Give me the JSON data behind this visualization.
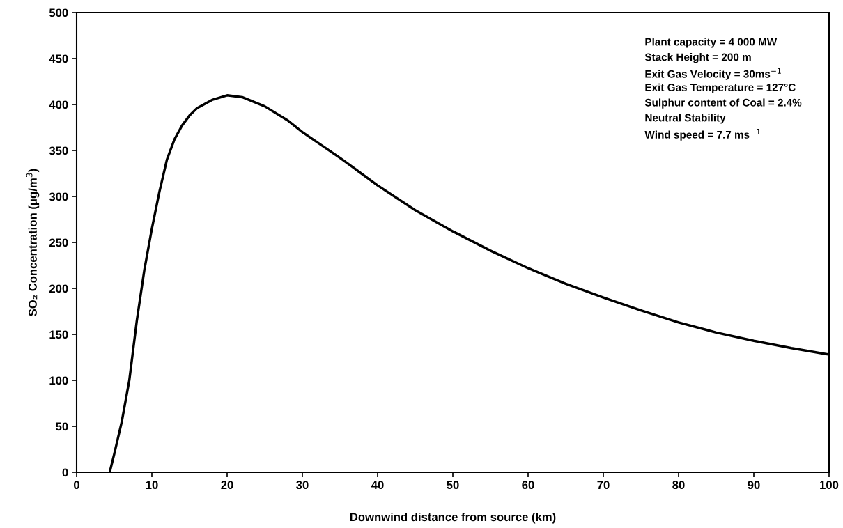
{
  "chart_data": {
    "type": "line",
    "xlabel": "Downwind distance from source (km)",
    "ylabel": "SO₂ Concentration (μg/m$^{3}$)",
    "x": [
      4.4,
      5,
      6,
      7,
      8,
      9,
      10,
      11,
      12,
      13,
      14,
      15,
      16,
      18,
      20,
      22,
      25,
      28,
      30,
      35,
      40,
      45,
      50,
      55,
      60,
      65,
      70,
      75,
      80,
      85,
      90,
      95,
      100
    ],
    "series": [
      {
        "color": "#000000",
        "values": [
          0,
          20,
          55,
          100,
          165,
          220,
          265,
          305,
          340,
          362,
          377,
          388,
          396,
          405,
          410,
          408,
          398,
          383,
          370,
          342,
          312,
          285,
          262,
          241,
          222,
          205,
          190,
          176,
          163,
          152,
          143,
          135,
          128
        ]
      }
    ],
    "xlim": [
      0,
      100
    ],
    "xticks": [
      0,
      10,
      20,
      30,
      40,
      50,
      60,
      70,
      80,
      90,
      100
    ],
    "ylim": [
      0,
      500
    ],
    "yticks": [
      0,
      50,
      100,
      150,
      200,
      250,
      300,
      350,
      400,
      450,
      500
    ],
    "grid": false,
    "marker": "none",
    "line_style": "solid",
    "legend": false,
    "annotations": [
      "Plant capacity = 4 000 MW",
      "Stack Height = 200 m",
      "Exit Gas Velocity = 30ms$^{−1}$",
      "Exit Gas Temperature = 127°C",
      "Sulphur content of Coal = 2.4%",
      "Neutral Stability",
      "Wind speed = 7.7 ms$^{−1}$"
    ]
  }
}
